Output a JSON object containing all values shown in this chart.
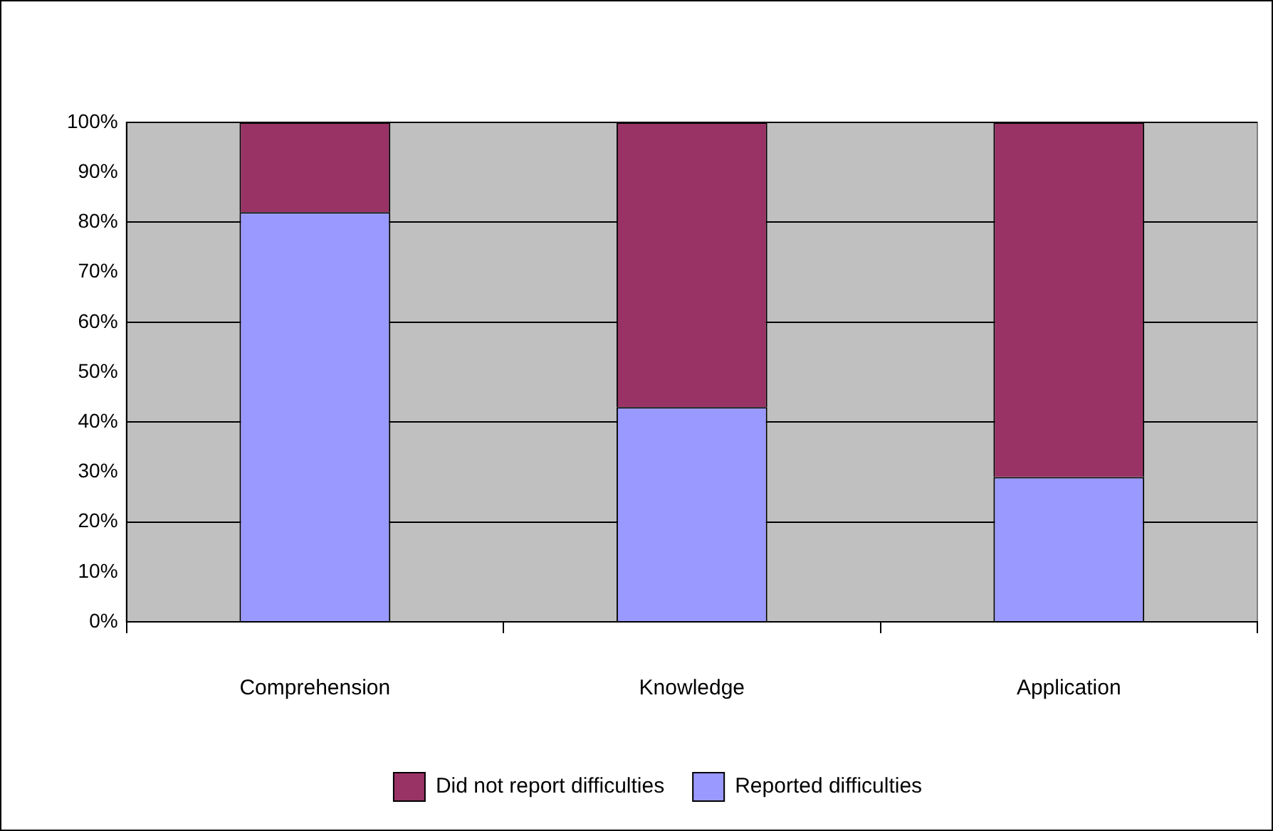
{
  "chart_data": {
    "type": "bar",
    "stacked": true,
    "categories": [
      "Comprehension",
      "Knowledge",
      "Application"
    ],
    "series": [
      {
        "name": "Reported difficulties",
        "color": "#9999ff",
        "values": [
          82,
          43,
          29
        ]
      },
      {
        "name": "Did not report difficulties",
        "color": "#993366",
        "values": [
          18,
          57,
          71
        ]
      }
    ],
    "ylim": [
      0,
      100
    ],
    "yticks": [
      {
        "value": 0,
        "label": "0%"
      },
      {
        "value": 10,
        "label": "10%"
      },
      {
        "value": 20,
        "label": "20%"
      },
      {
        "value": 30,
        "label": "30%"
      },
      {
        "value": 40,
        "label": "40%"
      },
      {
        "value": 50,
        "label": "50%"
      },
      {
        "value": 60,
        "label": "60%"
      },
      {
        "value": 70,
        "label": "70%"
      },
      {
        "value": 80,
        "label": "80%"
      },
      {
        "value": 90,
        "label": "90%"
      },
      {
        "value": 100,
        "label": "100%"
      }
    ],
    "grid": "y",
    "legend": "bottom"
  }
}
